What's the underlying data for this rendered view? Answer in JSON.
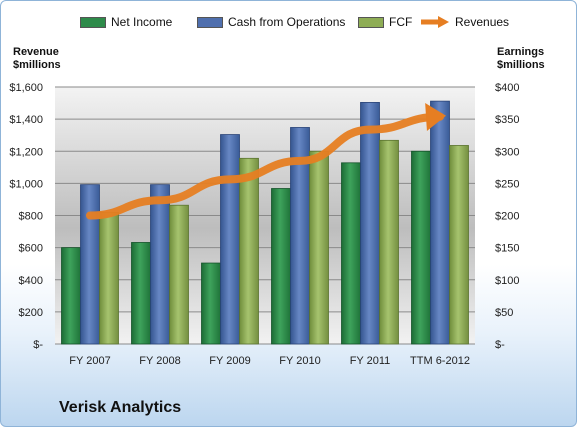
{
  "legend": {
    "items": [
      {
        "label": "Net Income",
        "color": "#2e8b4a"
      },
      {
        "label": "Cash from Operations",
        "color": "#4f6fae"
      },
      {
        "label": "FCF",
        "color": "#8ead55"
      },
      {
        "label": "Revenues",
        "color": "#e67e22"
      }
    ]
  },
  "axes": {
    "left_title_line1": "Revenue",
    "left_title_line2": "$millions",
    "right_title_line1": "Earnings",
    "right_title_line2": "$millions"
  },
  "title": "Verisk Analytics",
  "chart_data": {
    "type": "bar",
    "title": "Verisk Analytics",
    "categories": [
      "FY 2007",
      "FY 2008",
      "FY 2009",
      "FY 2010",
      "FY 2011",
      "TTM 6-2012"
    ],
    "series": [
      {
        "name": "Net Income",
        "axis": "right",
        "type": "bar",
        "color": "#2e8b4a",
        "values": [
          150,
          158,
          126,
          242,
          282,
          300
        ]
      },
      {
        "name": "Cash from Operations",
        "axis": "right",
        "type": "bar",
        "color": "#4f6fae",
        "values": [
          248,
          248,
          326,
          337,
          376,
          378
        ]
      },
      {
        "name": "FCF",
        "axis": "right",
        "type": "bar",
        "color": "#8ead55",
        "values": [
          205,
          216,
          289,
          300,
          317,
          309
        ]
      },
      {
        "name": "Revenues",
        "axis": "left",
        "type": "line",
        "color": "#e67e22",
        "values": [
          800,
          895,
          1025,
          1140,
          1335,
          1415
        ]
      }
    ],
    "y_left": {
      "label": "Revenue $millions",
      "ylim": [
        0,
        1600
      ],
      "ticks": [
        "$-",
        "$200",
        "$400",
        "$600",
        "$800",
        "$1,000",
        "$1,200",
        "$1,400",
        "$1,600"
      ]
    },
    "y_right": {
      "label": "Earnings $millions",
      "ylim": [
        0,
        400
      ],
      "ticks": [
        "$-",
        "$50",
        "$100",
        "$150",
        "$200",
        "$250",
        "$300",
        "$350",
        "$400"
      ]
    },
    "grid": true,
    "legend_position": "top"
  }
}
